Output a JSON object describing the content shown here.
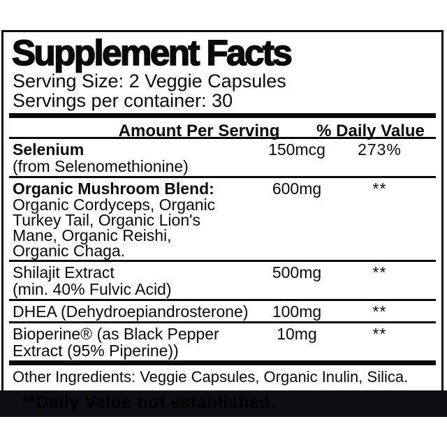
{
  "title": "Supplement Facts",
  "serving": {
    "size": "Serving Size: 2 Veggie Capsules",
    "per_container": "Servings per container: 30"
  },
  "columns": {
    "amount": "Amount Per Serving",
    "daily_value": "% Daily Value"
  },
  "rows": [
    {
      "name": "Selenium",
      "desc": "(from Selenomethionine)",
      "amount": "150mcg",
      "daily_value": "273%"
    },
    {
      "name": "Organic Mushroom Blend:",
      "desc": "Organic Cordyceps, Organic\nTurkey Tail, Organic Lion's\nMane, Organic Reishi,\nOrganic Chaga.",
      "amount": "600mg",
      "daily_value": "**"
    },
    {
      "name": "Shilajit Extract",
      "desc": "(min. 40% Fulvic Acid)",
      "amount": "500mg",
      "daily_value": "**"
    },
    {
      "name": "DHEA (Dehydroepiandrosterone)",
      "desc": "",
      "amount": "100mg",
      "daily_value": "**"
    },
    {
      "name": "Bioperine® (as Black Pepper\nExtract (95% Piperine))",
      "desc": "",
      "amount": "10mg",
      "daily_value": "**"
    }
  ],
  "other_ingredients": "Other Ingredients: Veggie Capsules, Organic Inulin, Silica.",
  "footnote_clipped": "**Daily Value not established.",
  "colors": {
    "text": "#0a0a0a",
    "panel_bg": "#ffffff",
    "rule": "#0a0a0a",
    "band_bg": "#0d0d12"
  }
}
